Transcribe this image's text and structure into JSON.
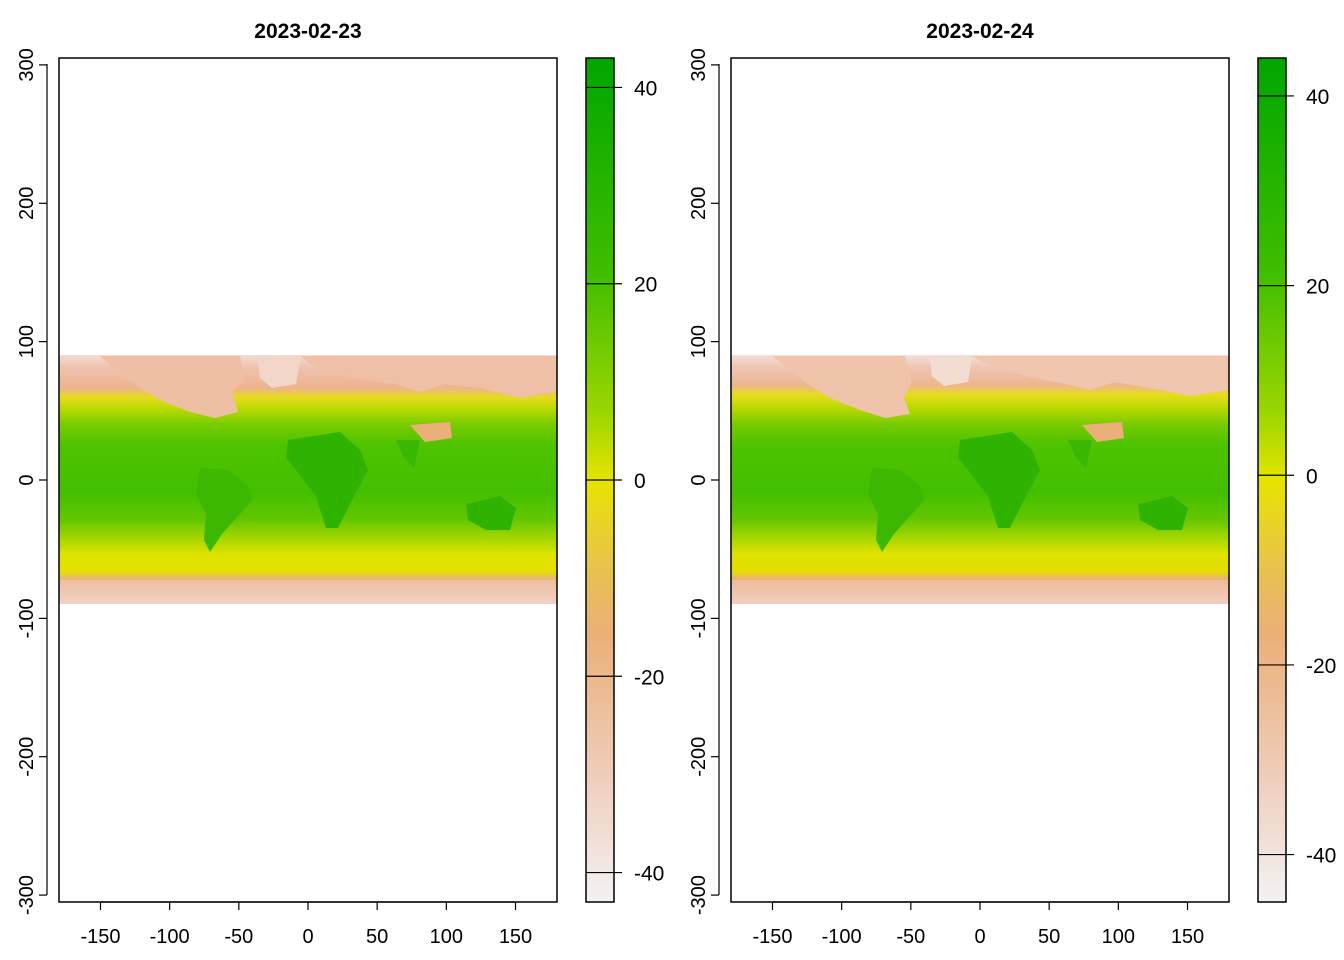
{
  "chart_data": [
    {
      "type": "heatmap",
      "title": "2023-02-23",
      "xlabel": "",
      "ylabel": "",
      "xlim": [
        -180,
        180
      ],
      "ylim": [
        -305,
        305
      ],
      "data_extent_y": [
        -90,
        90
      ],
      "x_ticks": [
        "-150",
        "-100",
        "-50",
        "0",
        "50",
        "100",
        "150"
      ],
      "y_ticks": [
        "-300",
        "-200",
        "-100",
        "0",
        "100",
        "200",
        "300"
      ],
      "legend": {
        "placement": "right",
        "range": [
          -43,
          43
        ],
        "ticks": [
          "40",
          "20",
          "0",
          "-20",
          "-40"
        ],
        "colors": [
          "#f2f2f2",
          "#f0c8b4",
          "#ebaf78",
          "#e6e400",
          "#63c600",
          "#00a600"
        ]
      },
      "description_fields": {
        "northern_band": "cold (salmon/pink) north of ~45°N",
        "tropics": "warm (green) between ~40°S and ~40°N",
        "southern_band": "cold (salmon/pink) south of ~65°S"
      }
    },
    {
      "type": "heatmap",
      "title": "2023-02-24",
      "xlabel": "",
      "ylabel": "",
      "xlim": [
        -180,
        180
      ],
      "ylim": [
        -305,
        305
      ],
      "data_extent_y": [
        -90,
        90
      ],
      "x_ticks": [
        "-150",
        "-100",
        "-50",
        "0",
        "50",
        "100",
        "150"
      ],
      "y_ticks": [
        "-300",
        "-200",
        "-100",
        "0",
        "100",
        "200",
        "300"
      ],
      "legend": {
        "placement": "right",
        "range": [
          -45,
          44
        ],
        "ticks": [
          "40",
          "20",
          "0",
          "-20",
          "-40"
        ],
        "colors": [
          "#f2f2f2",
          "#f0c8b4",
          "#ebaf78",
          "#e6e400",
          "#63c600",
          "#00a600"
        ]
      }
    }
  ]
}
